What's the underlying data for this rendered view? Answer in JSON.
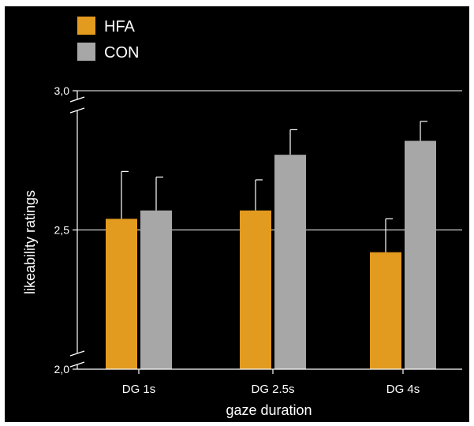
{
  "chart_data": {
    "type": "bar",
    "categories": [
      "DG 1s",
      "DG 2.5s",
      "DG 4s"
    ],
    "series": [
      {
        "name": "HFA",
        "values": [
          2.54,
          2.57,
          2.42
        ],
        "errors": [
          0.17,
          0.11,
          0.12
        ],
        "color": "#e29a1f"
      },
      {
        "name": "CON",
        "values": [
          2.57,
          2.77,
          2.82
        ],
        "errors": [
          0.12,
          0.09,
          0.07
        ],
        "color": "#a7a7a7"
      }
    ],
    "xlabel": "gaze duration",
    "ylabel": "likeability ratings",
    "ylim": [
      2.0,
      3.0
    ],
    "yticks": [
      {
        "value": 2.0,
        "label": "2,0"
      },
      {
        "value": 2.5,
        "label": "2,5"
      },
      {
        "value": 3.0,
        "label": "3,0"
      }
    ],
    "gridlines": [
      2.5,
      3.0
    ],
    "axis_break": true,
    "legend_position": "top-left",
    "background": "#000000",
    "foreground": "#ffffff"
  }
}
